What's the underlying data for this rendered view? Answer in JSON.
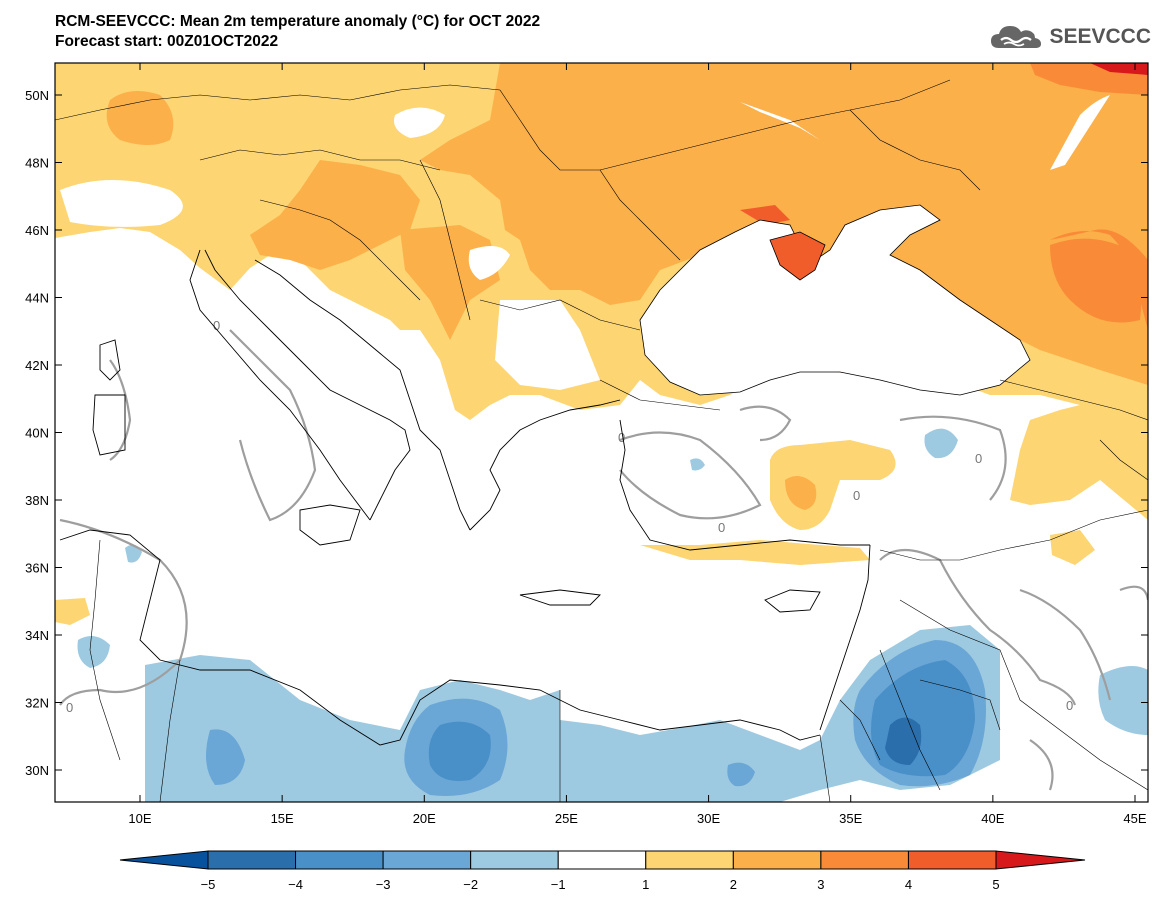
{
  "header": {
    "title": "RCM-SEEVCCC: Mean 2m temperature anomaly (°C) for OCT 2022",
    "subtitle": "Forecast start: 00Z01OCT2022"
  },
  "logo": {
    "text": "SEEVCCC",
    "icon": "cloud-icon"
  },
  "map": {
    "lat_ticks": [
      "30N",
      "32N",
      "34N",
      "36N",
      "38N",
      "40N",
      "42N",
      "44N",
      "46N",
      "48N",
      "50N"
    ],
    "lon_ticks": [
      "10E",
      "15E",
      "20E",
      "25E",
      "30E",
      "35E",
      "40E",
      "45E"
    ],
    "contour_label": "0"
  },
  "colorbar": {
    "levels": [
      "−5",
      "−4",
      "−3",
      "−2",
      "−1",
      "1",
      "2",
      "3",
      "4",
      "5"
    ],
    "colors": [
      "#08519c",
      "#2b6eac",
      "#4a90c8",
      "#6aa7d6",
      "#9ecae1",
      "#ffffff",
      "#fdd572",
      "#fbb04a",
      "#f98b38",
      "#f15c2b",
      "#d7191c"
    ]
  }
}
